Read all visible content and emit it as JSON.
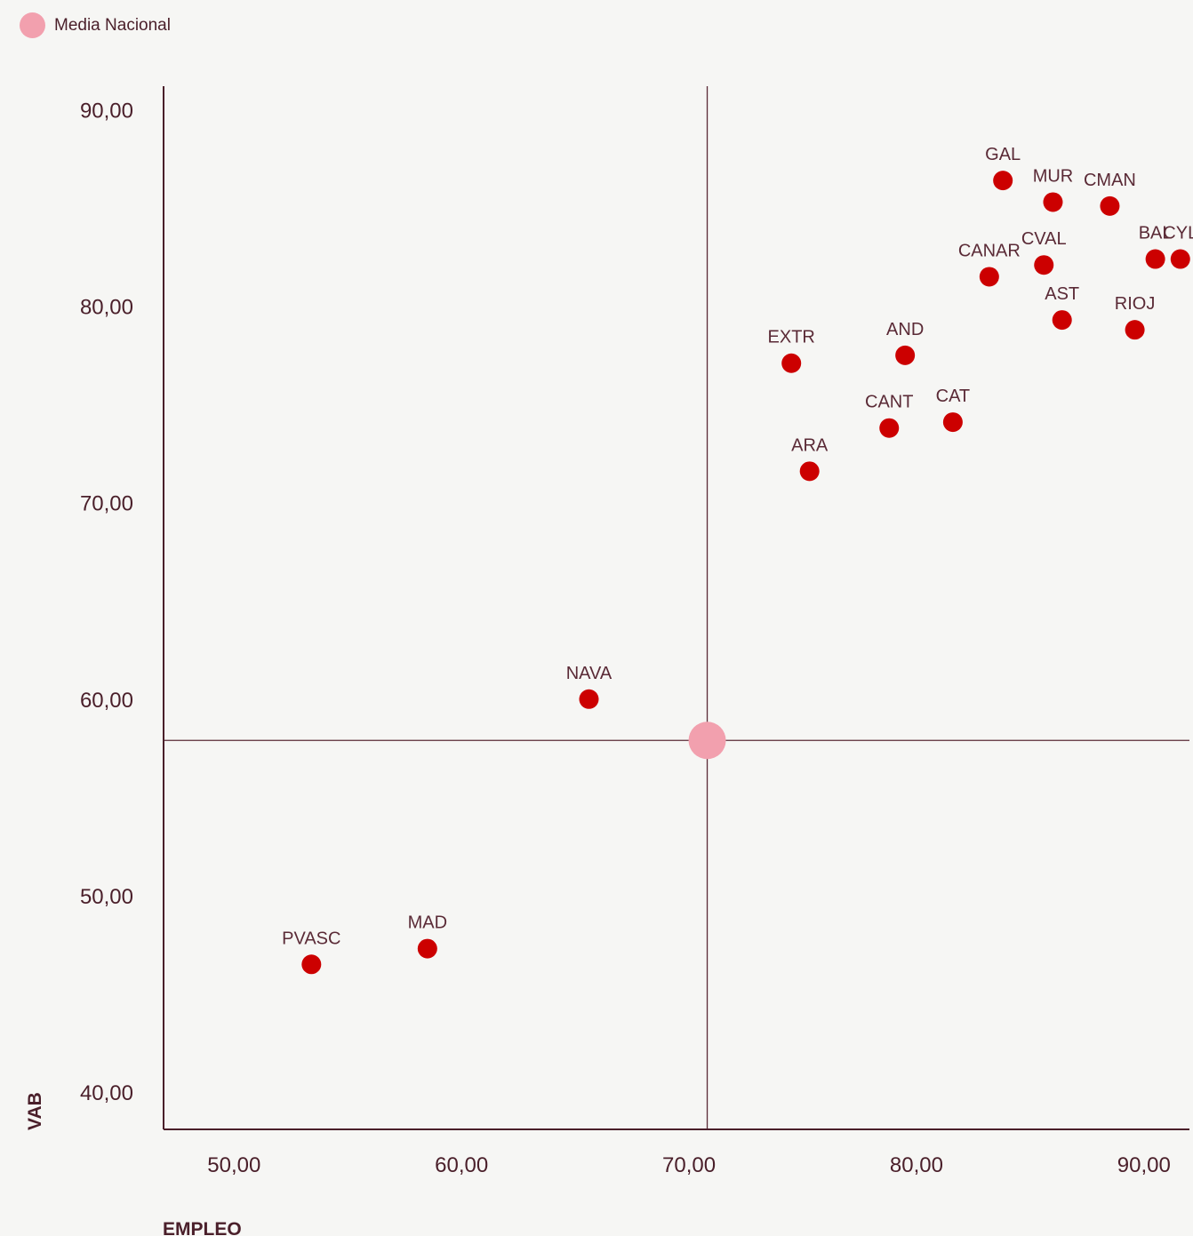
{
  "legend": {
    "label": "Media Nacional",
    "color": "#f2a0ae"
  },
  "chart_data": {
    "type": "scatter",
    "xlabel": "EMPLEO",
    "ylabel": "VAB",
    "xlim": [
      46.9,
      92.0
    ],
    "ylim": [
      38.1,
      91.2
    ],
    "xticks": [
      {
        "value": 50,
        "label": "50,00"
      },
      {
        "value": 60,
        "label": "60,00"
      },
      {
        "value": 70,
        "label": "70,00"
      },
      {
        "value": 80,
        "label": "80,00"
      },
      {
        "value": 90,
        "label": "90,00"
      }
    ],
    "yticks": [
      {
        "value": 40,
        "label": "40,00"
      },
      {
        "value": 50,
        "label": "50,00"
      },
      {
        "value": 60,
        "label": "60,00"
      },
      {
        "value": 70,
        "label": "70,00"
      },
      {
        "value": 80,
        "label": "80,00"
      },
      {
        "value": 90,
        "label": "90,00"
      }
    ],
    "point_color": "#cc0000",
    "reference": {
      "name": "Media Nacional",
      "x": 70.8,
      "y": 57.9
    },
    "points": [
      {
        "label": "GAL",
        "x": 83.8,
        "y": 86.4
      },
      {
        "label": "MUR",
        "x": 86.0,
        "y": 85.3
      },
      {
        "label": "CMAN",
        "x": 88.5,
        "y": 85.1
      },
      {
        "label": "BAL",
        "x": 90.5,
        "y": 82.4
      },
      {
        "label": "CYL",
        "x": 91.6,
        "y": 82.4
      },
      {
        "label": "CVAL",
        "x": 85.6,
        "y": 82.1
      },
      {
        "label": "CANAR",
        "x": 83.2,
        "y": 81.5
      },
      {
        "label": "AST",
        "x": 86.4,
        "y": 79.3
      },
      {
        "label": "RIOJ",
        "x": 89.6,
        "y": 78.8
      },
      {
        "label": "AND",
        "x": 79.5,
        "y": 77.5
      },
      {
        "label": "EXTR",
        "x": 74.5,
        "y": 77.1
      },
      {
        "label": "CAT",
        "x": 81.6,
        "y": 74.1
      },
      {
        "label": "CANT",
        "x": 78.8,
        "y": 73.8
      },
      {
        "label": "ARA",
        "x": 75.3,
        "y": 71.6
      },
      {
        "label": "NAVA",
        "x": 65.6,
        "y": 60.0
      },
      {
        "label": "MAD",
        "x": 58.5,
        "y": 47.3
      },
      {
        "label": "PVASC",
        "x": 53.4,
        "y": 46.5
      }
    ]
  }
}
